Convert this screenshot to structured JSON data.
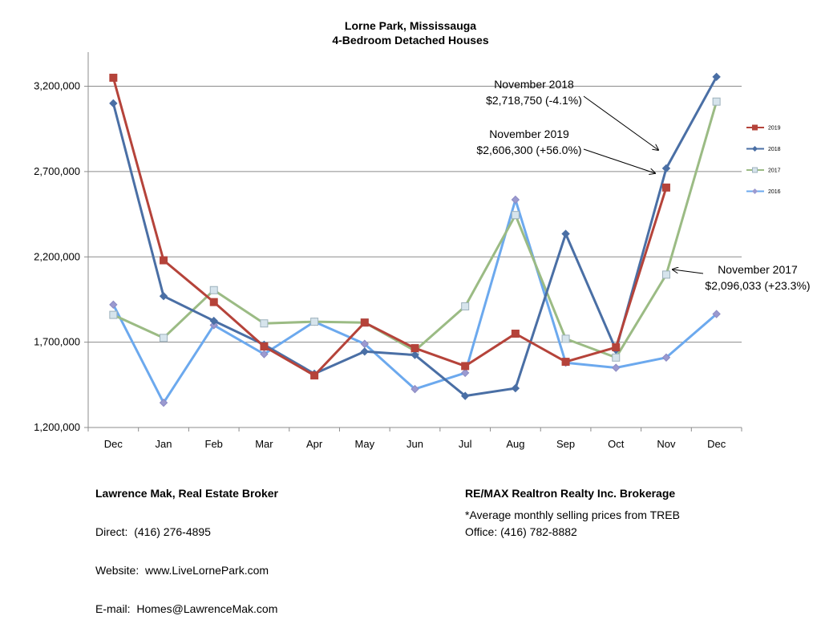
{
  "chart_data": {
    "type": "line",
    "title": "Lorne Park, Mississauga",
    "subtitle": "4-Bedroom Detached Houses",
    "categories": [
      "Dec",
      "Jan",
      "Feb",
      "Mar",
      "Apr",
      "May",
      "Jun",
      "Jul",
      "Aug",
      "Sep",
      "Oct",
      "Nov",
      "Dec"
    ],
    "ylim": [
      1200000,
      3400000
    ],
    "yticks": [
      1200000,
      1700000,
      2200000,
      2700000,
      3200000
    ],
    "ytick_labels": [
      "1,200,000",
      "1,700,000",
      "2,200,000",
      "2,700,000",
      "3,200,000"
    ],
    "grid": true,
    "legend_position": "right",
    "series": [
      {
        "name": "2019",
        "color": "#B5433A",
        "marker": "square",
        "values": [
          3250000,
          2180000,
          1935000,
          1675000,
          1505000,
          1815000,
          1665000,
          1560000,
          1750000,
          1585000,
          1670000,
          2606300,
          null
        ]
      },
      {
        "name": "2018",
        "color": "#4A6FA5",
        "marker": "diamond",
        "values": [
          3100000,
          1970000,
          1825000,
          1685000,
          1515000,
          1645000,
          1625000,
          1385000,
          1430000,
          2335000,
          1655000,
          2718750,
          3255000
        ]
      },
      {
        "name": "2017",
        "color": "#9BBB84",
        "marker": "square-light",
        "values": [
          1860000,
          1725000,
          2005000,
          1810000,
          1820000,
          1815000,
          1650000,
          1910000,
          2445000,
          1720000,
          1610000,
          2096033,
          3110000
        ]
      },
      {
        "name": "2016",
        "color": "#6CA9EE",
        "marker": "diamond-light",
        "values": [
          1920000,
          1345000,
          1800000,
          1630000,
          1820000,
          1690000,
          1425000,
          1520000,
          2535000,
          1580000,
          1550000,
          1610000,
          1865000
        ]
      }
    ],
    "annotations": [
      {
        "line1": "November 2018",
        "line2": "$2,718,750 (-4.1%)"
      },
      {
        "line1": "November 2019",
        "line2": "$2,606,300 (+56.0%)"
      },
      {
        "line1": "November 2017",
        "line2": "$2,096,033 (+23.3%)"
      }
    ]
  },
  "footer": {
    "broker_name": "Lawrence Mak, Real Estate Broker",
    "direct": "Direct:  (416) 276-4895",
    "website": "Website:  www.LiveLornePark.com",
    "email": "E-mail:  Homes@LawrenceMak.com",
    "brokerage": "RE/MAX Realtron Realty Inc. Brokerage",
    "office": "Office: (416) 782-8882",
    "source_note": "*Average monthly selling prices from TREB"
  }
}
